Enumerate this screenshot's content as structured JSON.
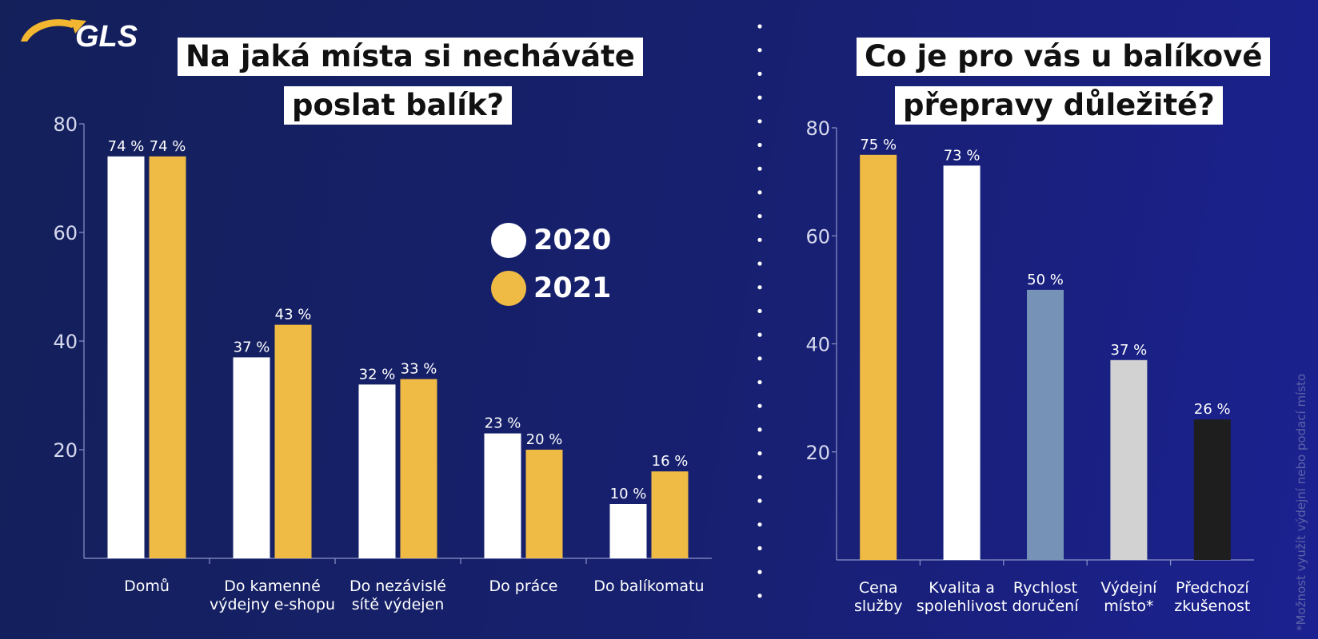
{
  "brand": {
    "logo_text": "GLS",
    "logo_color": "#f2b630"
  },
  "left": {
    "title_line1": "Na jaká místa si necháváte",
    "title_line2": "poslat balík?"
  },
  "right": {
    "title_line1": "Co je pro vás u balíkové",
    "title_line2": "přepravy důležité?"
  },
  "legend": [
    {
      "label": "2020",
      "color": "#ffffff"
    },
    {
      "label": "2021",
      "color": "#f0bb45"
    }
  ],
  "footnote": {
    "text": "*Možnost využít výdejní nebo podací místo"
  },
  "chart_data": [
    {
      "type": "bar",
      "title": "Na jaká místa si necháváte poslat balík?",
      "categories": [
        [
          "Domů"
        ],
        [
          "Do kamenné",
          "výdejny e-shopu"
        ],
        [
          "Do nezávislé",
          "sítě výdejen"
        ],
        [
          "Do práce"
        ],
        [
          "Do balíkomatu"
        ]
      ],
      "series": [
        {
          "name": "2020",
          "color": "#ffffff",
          "values": [
            74,
            37,
            32,
            23,
            10
          ]
        },
        {
          "name": "2021",
          "color": "#f0bb45",
          "values": [
            74,
            43,
            33,
            20,
            16
          ]
        }
      ],
      "value_suffix": " %",
      "ylim": [
        0,
        80
      ],
      "yticks": [
        20,
        40,
        60,
        80
      ],
      "legend": "right"
    },
    {
      "type": "bar",
      "title": "Co je pro vás u balíkové přepravy důležité?",
      "categories": [
        [
          "Cena",
          "služby"
        ],
        [
          "Kvalita a",
          "spolehlivost"
        ],
        [
          "Rychlost",
          "doručení"
        ],
        [
          "Výdejní",
          "místo*"
        ],
        [
          "Předchozí",
          "zkušenost"
        ]
      ],
      "values": [
        75,
        73,
        50,
        37,
        26
      ],
      "colors": [
        "#f0bb45",
        "#ffffff",
        "#7693b7",
        "#d2d2d2",
        "#1e1e1e"
      ],
      "value_suffix": " %",
      "ylim": [
        0,
        80
      ],
      "yticks": [
        20,
        40,
        60,
        80
      ]
    }
  ]
}
